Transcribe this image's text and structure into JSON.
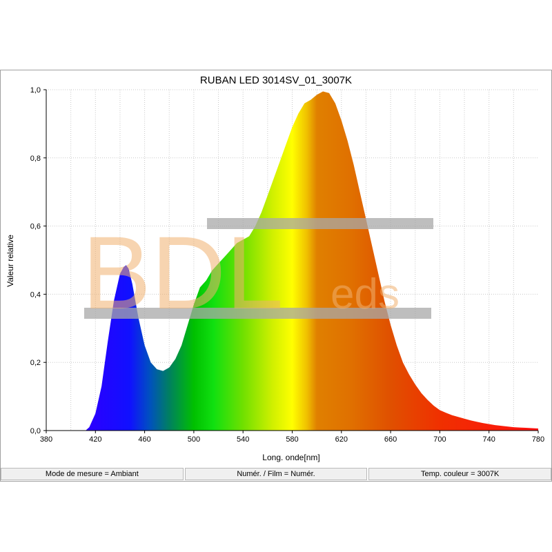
{
  "chart_data": {
    "type": "area",
    "title": "RUBAN LED 3014SV_01_3007K",
    "xlabel": "Long. onde[nm]",
    "ylabel": "Valeur relative",
    "xlim": [
      380,
      780
    ],
    "ylim": [
      0,
      1
    ],
    "xticks": [
      380,
      420,
      460,
      500,
      540,
      580,
      620,
      660,
      700,
      740,
      780
    ],
    "yticks": [
      "0,0",
      "0,2",
      "0,4",
      "0,6",
      "0,8",
      "1,0"
    ],
    "grid": true,
    "fill": "visible-spectrum gradient",
    "x": [
      412,
      415,
      420,
      425,
      430,
      435,
      440,
      443,
      445,
      447,
      450,
      455,
      460,
      465,
      470,
      475,
      480,
      485,
      490,
      495,
      500,
      505,
      510,
      515,
      520,
      525,
      530,
      535,
      540,
      545,
      550,
      555,
      560,
      565,
      570,
      575,
      580,
      585,
      590,
      595,
      600,
      605,
      610,
      615,
      620,
      625,
      630,
      635,
      640,
      645,
      650,
      655,
      660,
      665,
      670,
      675,
      680,
      685,
      690,
      695,
      700,
      705,
      710,
      715,
      720,
      725,
      730,
      735,
      740,
      745,
      750,
      755,
      760,
      765,
      770,
      775,
      780
    ],
    "y": [
      0.0,
      0.01,
      0.05,
      0.13,
      0.26,
      0.38,
      0.46,
      0.48,
      0.485,
      0.475,
      0.43,
      0.33,
      0.25,
      0.2,
      0.18,
      0.175,
      0.185,
      0.21,
      0.25,
      0.31,
      0.37,
      0.42,
      0.44,
      0.47,
      0.49,
      0.51,
      0.53,
      0.55,
      0.56,
      0.57,
      0.6,
      0.64,
      0.69,
      0.74,
      0.79,
      0.84,
      0.89,
      0.93,
      0.96,
      0.97,
      0.985,
      0.995,
      0.99,
      0.96,
      0.91,
      0.85,
      0.78,
      0.7,
      0.62,
      0.54,
      0.46,
      0.38,
      0.31,
      0.25,
      0.2,
      0.165,
      0.135,
      0.11,
      0.09,
      0.073,
      0.06,
      0.052,
      0.045,
      0.04,
      0.035,
      0.03,
      0.026,
      0.022,
      0.019,
      0.016,
      0.014,
      0.012,
      0.01,
      0.009,
      0.008,
      0.007,
      0.006
    ]
  },
  "watermark": {
    "main": "BDL",
    "suffix": "eds",
    "color": "#f0b070"
  },
  "status": {
    "mode": "Mode de mesure = Ambiant",
    "film": "Numér. / Film = Numér.",
    "temp": "Temp. couleur = 3007K"
  }
}
